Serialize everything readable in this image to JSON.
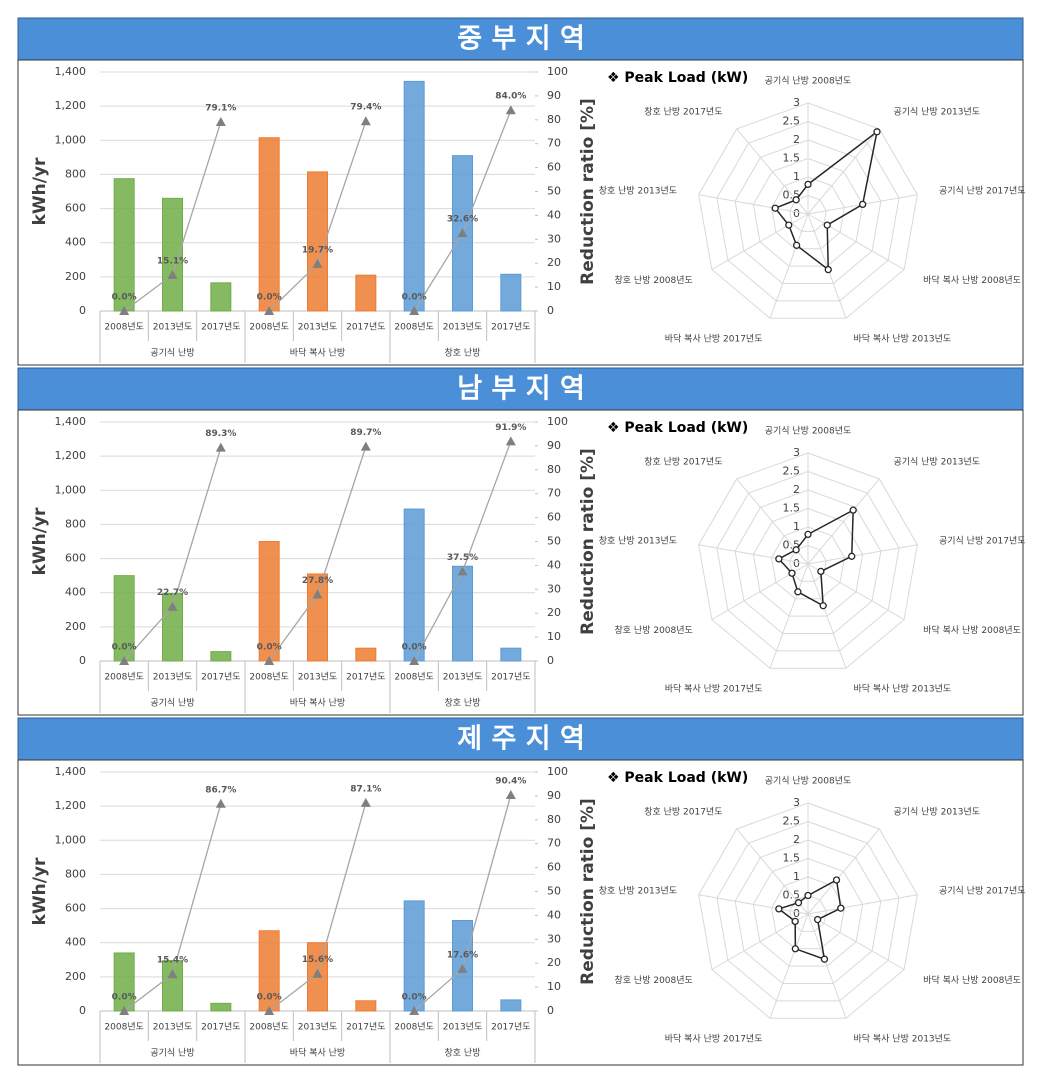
{
  "section_titles": [
    "중 부 지 역",
    "남 부 지 역",
    "제 주 지 역"
  ],
  "chart_data": [
    {
      "type": "bar",
      "categories": [
        "2008년도",
        "2013년도",
        "2017년도",
        "2008년도",
        "2013년도",
        "2017년도",
        "2008년도",
        "2013년도",
        "2017년도"
      ],
      "group_labels": [
        "공기식 난방",
        "바닥 복사 난방",
        "창호 난방"
      ],
      "ylabel": "kWh/yr",
      "y2label": "Reduction ratio [%]",
      "ylim": [
        0,
        1400
      ],
      "yticks": [
        0,
        200,
        400,
        600,
        800,
        {
          "value": 1000,
          "label": "1,000"
        },
        {
          "value": 1200,
          "label": "1,200"
        },
        {
          "value": 1400,
          "label": "1,400"
        }
      ],
      "y2lim": [
        0,
        100
      ],
      "y2ticks": [
        0,
        10,
        20,
        30,
        40,
        50,
        60,
        70,
        80,
        90,
        100
      ],
      "grid": true,
      "series": [
        {
          "type": "bar",
          "group_colors": [
            "#70ad47",
            "#ed7d31",
            "#5b9bd5"
          ],
          "values": [
            775,
            660,
            165,
            1015,
            815,
            210,
            1345,
            910,
            215
          ]
        },
        {
          "type": "line",
          "axis": "y2",
          "color": "#a6a6a6",
          "marker_color": "#7f7f7f",
          "values": [
            0.0,
            15.1,
            79.1,
            0.0,
            19.7,
            79.4,
            0.0,
            32.6,
            84.0
          ],
          "value_labels": [
            "0.0%",
            "15.1%",
            "79.1%",
            "0.0%",
            "19.7%",
            "79.4%",
            "0.0%",
            "32.6%",
            "84.0%"
          ]
        }
      ]
    },
    {
      "type": "radar",
      "title": "❖  Peak Load (kW)",
      "categories": [
        "공기식 난방 2008년도",
        "공기식 난방 2013년도",
        "공기식 난방 2017년도",
        "바닥 복사 난방 2008년도",
        "바닥 복사 난방 2013년도",
        "바닥 복사 난방 2017년도",
        "창호 난방 2008년도",
        "창호 난방 2013년도",
        "창호 난방 2017년도"
      ],
      "values": [
        0.8,
        2.9,
        1.5,
        0.6,
        1.6,
        0.9,
        0.6,
        0.9,
        0.5
      ],
      "rlim": [
        0,
        3
      ],
      "rticks": [
        0,
        0.5,
        1,
        1.5,
        2,
        2.5,
        3
      ],
      "color": "#262626"
    },
    {
      "type": "bar",
      "categories": [
        "2008년도",
        "2013년도",
        "2017년도",
        "2008년도",
        "2013년도",
        "2017년도",
        "2008년도",
        "2013년도",
        "2017년도"
      ],
      "group_labels": [
        "공기식 난방",
        "바닥 복사 난방",
        "창호 난방"
      ],
      "ylabel": "kWh/yr",
      "y2label": "Reduction ratio [%]",
      "ylim": [
        0,
        1400
      ],
      "yticks": [
        0,
        200,
        400,
        600,
        800,
        {
          "value": 1000,
          "label": "1,000"
        },
        {
          "value": 1200,
          "label": "1,200"
        },
        {
          "value": 1400,
          "label": "1,400"
        }
      ],
      "y2lim": [
        0,
        100
      ],
      "y2ticks": [
        0,
        10,
        20,
        30,
        40,
        50,
        60,
        70,
        80,
        90,
        100
      ],
      "grid": true,
      "series": [
        {
          "type": "bar",
          "group_colors": [
            "#70ad47",
            "#ed7d31",
            "#5b9bd5"
          ],
          "values": [
            500,
            395,
            55,
            700,
            510,
            75,
            890,
            555,
            75
          ]
        },
        {
          "type": "line",
          "axis": "y2",
          "color": "#a6a6a6",
          "marker_color": "#7f7f7f",
          "values": [
            0.0,
            22.7,
            89.3,
            0.0,
            27.8,
            89.7,
            0.0,
            37.5,
            91.9
          ],
          "value_labels": [
            "0.0%",
            "22.7%",
            "89.3%",
            "0.0%",
            "27.8%",
            "89.7%",
            "0.0%",
            "37.5%",
            "91.9%"
          ]
        }
      ]
    },
    {
      "type": "radar",
      "title": "❖  Peak Load (kW)",
      "categories": [
        "공기식 난방 2008년도",
        "공기식 난방 2013년도",
        "공기식 난방 2017년도",
        "바닥 복사 난방 2008년도",
        "바닥 복사 난방 2013년도",
        "바닥 복사 난방 2017년도",
        "창호 난방 2008년도",
        "창호 난방 2013년도",
        "창호 난방 2017년도"
      ],
      "values": [
        0.8,
        1.9,
        1.2,
        0.4,
        1.2,
        0.8,
        0.5,
        0.8,
        0.5
      ],
      "rlim": [
        0,
        3
      ],
      "rticks": [
        0,
        0.5,
        1,
        1.5,
        2,
        2.5,
        3
      ],
      "color": "#262626"
    },
    {
      "type": "bar",
      "categories": [
        "2008년도",
        "2013년도",
        "2017년도",
        "2008년도",
        "2013년도",
        "2017년도",
        "2008년도",
        "2013년도",
        "2017년도"
      ],
      "group_labels": [
        "공기식 난방",
        "바닥 복사 난방",
        "창호 난방"
      ],
      "ylabel": "kWh/yr",
      "y2label": "Reduction ratio [%]",
      "ylim": [
        0,
        1400
      ],
      "yticks": [
        0,
        200,
        400,
        600,
        800,
        {
          "value": 1000,
          "label": "1,000"
        },
        {
          "value": 1200,
          "label": "1,200"
        },
        {
          "value": 1400,
          "label": "1,400"
        }
      ],
      "y2lim": [
        0,
        100
      ],
      "y2ticks": [
        0,
        10,
        20,
        30,
        40,
        50,
        60,
        70,
        80,
        90,
        100
      ],
      "grid": true,
      "series": [
        {
          "type": "bar",
          "group_colors": [
            "#70ad47",
            "#ed7d31",
            "#5b9bd5"
          ],
          "values": [
            340,
            295,
            45,
            470,
            400,
            60,
            645,
            530,
            65
          ]
        },
        {
          "type": "line",
          "axis": "y2",
          "color": "#a6a6a6",
          "marker_color": "#7f7f7f",
          "values": [
            0.0,
            15.4,
            86.7,
            0.0,
            15.6,
            87.1,
            0.0,
            17.6,
            90.4
          ],
          "value_labels": [
            "0.0%",
            "15.4%",
            "86.7%",
            "0.0%",
            "15.6%",
            "87.1%",
            "0.0%",
            "17.6%",
            "90.4%"
          ]
        }
      ]
    },
    {
      "type": "radar",
      "title": "❖  Peak Load (kW)",
      "categories": [
        "공기식 난방 2008년도",
        "공기식 난방 2013년도",
        "공기식 난방 2017년도",
        "바닥 복사 난방 2008년도",
        "바닥 복사 난방 2013년도",
        "바닥 복사 난방 2017년도",
        "창호 난방 2008년도",
        "창호 난방 2013년도",
        "창호 난방 2017년도"
      ],
      "values": [
        0.5,
        1.2,
        0.9,
        0.3,
        1.3,
        1.0,
        0.4,
        0.8,
        0.4
      ],
      "rlim": [
        0,
        3
      ],
      "rticks": [
        0,
        0.5,
        1,
        1.5,
        2,
        2.5,
        3
      ],
      "color": "#262626"
    }
  ]
}
